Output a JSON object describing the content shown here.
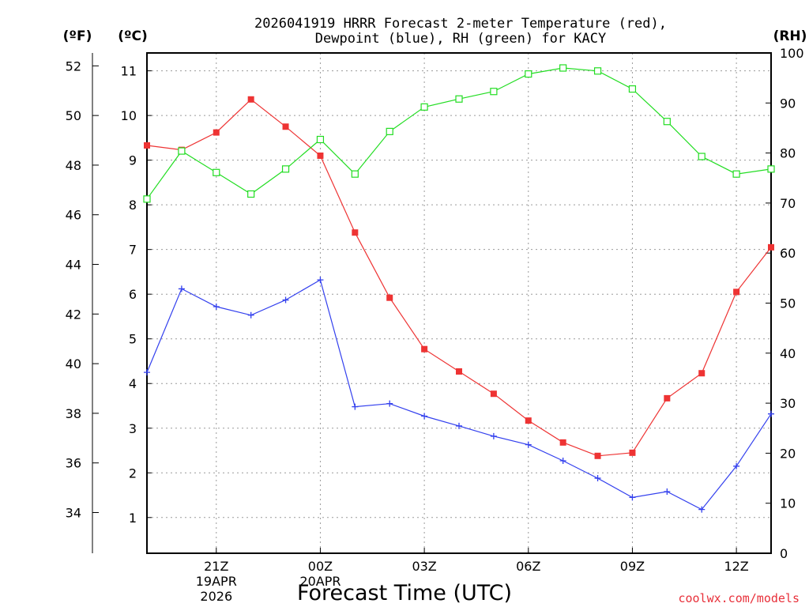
{
  "chart_data": {
    "type": "line",
    "title": [
      "2026041919 HRRR Forecast 2-meter Temperature (red),",
      "Dewpoint (blue), RH (green) for KACY"
    ],
    "xlabel": "Forecast Time (UTC)",
    "units": {
      "fahrenheit": "(ºF)",
      "celsius": "(ºC)",
      "rh": "(RH)"
    },
    "x_hours": [
      19,
      20,
      21,
      22,
      23,
      24,
      25,
      26,
      27,
      28,
      29,
      30,
      31,
      32,
      33,
      34,
      35,
      36,
      37
    ],
    "xlim": [
      19,
      37
    ],
    "x_ticks": [
      {
        "hour": 21,
        "label": "21Z",
        "label2": "19APR",
        "label3": "2026"
      },
      {
        "hour": 24,
        "label": "00Z",
        "label2": "20APR",
        "label3": ""
      },
      {
        "hour": 27,
        "label": "03Z",
        "label2": "",
        "label3": ""
      },
      {
        "hour": 30,
        "label": "06Z",
        "label2": "",
        "label3": ""
      },
      {
        "hour": 33,
        "label": "09Z",
        "label2": "",
        "label3": ""
      },
      {
        "hour": 36,
        "label": "12Z",
        "label2": "",
        "label3": ""
      }
    ],
    "y_celsius": {
      "ylim": [
        0.2,
        11.4
      ],
      "ticks": [
        "1",
        "2",
        "3",
        "4",
        "5",
        "6",
        "7",
        "8",
        "9",
        "10",
        "11"
      ]
    },
    "y_fahrenheit": {
      "ticks": [
        "34",
        "36",
        "38",
        "40",
        "42",
        "44",
        "46",
        "48",
        "50",
        "52"
      ]
    },
    "y_rh": {
      "ylim": [
        0,
        100
      ],
      "ticks": [
        "0",
        "10",
        "20",
        "30",
        "40",
        "50",
        "60",
        "70",
        "80",
        "90",
        "100"
      ]
    },
    "series": [
      {
        "name": "Temperature",
        "axis": "celsius",
        "color": "#ee3333",
        "marker": "square",
        "values": [
          9.33,
          9.23,
          9.62,
          10.36,
          9.75,
          9.1,
          7.38,
          5.92,
          4.77,
          4.27,
          3.77,
          3.17,
          2.68,
          2.38,
          2.45,
          3.67,
          4.23,
          6.05,
          7.05
        ]
      },
      {
        "name": "Dewpoint",
        "axis": "celsius",
        "color": "#3340ee",
        "marker": "plus",
        "values": [
          4.25,
          6.12,
          5.72,
          5.53,
          5.87,
          6.32,
          3.48,
          3.55,
          3.27,
          3.05,
          2.82,
          2.63,
          2.27,
          1.88,
          1.45,
          1.58,
          1.18,
          2.15,
          3.32
        ]
      },
      {
        "name": "RH",
        "axis": "rh",
        "color": "#22dd22",
        "marker": "open-square",
        "values": [
          70.8,
          80.4,
          76.1,
          71.8,
          76.8,
          82.7,
          75.8,
          84.3,
          89.2,
          90.8,
          92.3,
          95.8,
          97.0,
          96.4,
          92.8,
          86.3,
          79.3,
          75.8,
          76.8
        ]
      }
    ],
    "grid": true
  },
  "credit": "coolwx.com/models"
}
